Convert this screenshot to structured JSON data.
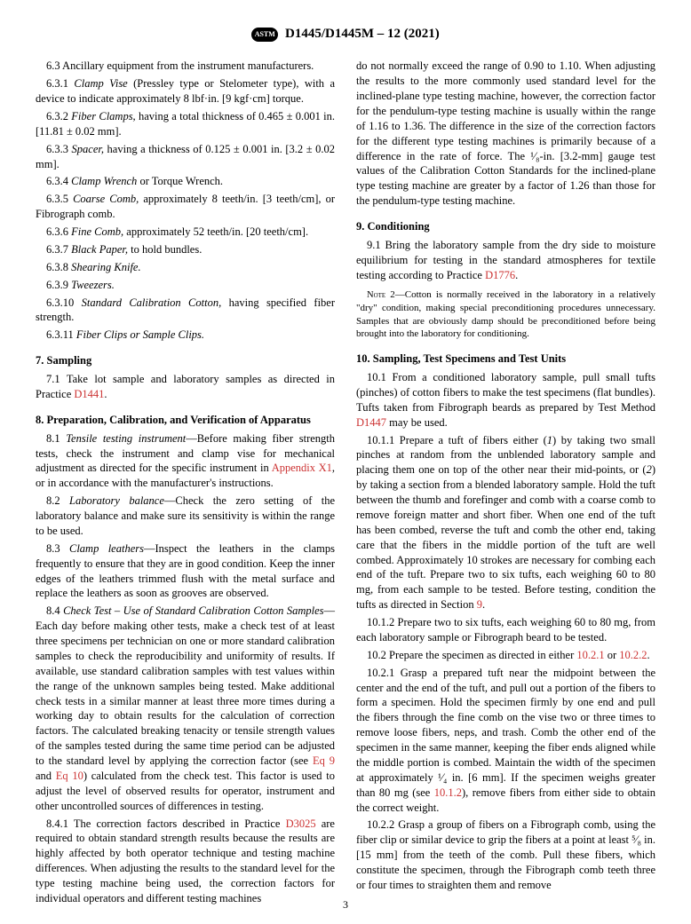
{
  "header": {
    "logo_label": "ASTM",
    "designation": "D1445/D1445M – 12 (2021)"
  },
  "page_number": "3",
  "col1": {
    "p6_3": "6.3 Ancillary equipment from the instrument manufacturers.",
    "p6_3_1_a": "6.3.1 ",
    "p6_3_1_i": "Clamp Vise ",
    "p6_3_1_b": "(Pressley type or Stelometer type), with a device to indicate approximately 8 lbf·in. [9 kgf·cm] torque.",
    "p6_3_2_a": "6.3.2 ",
    "p6_3_2_i": "Fiber Clamps, ",
    "p6_3_2_b": "having a total thickness of 0.465 ± 0.001 in. [11.81 ± 0.02 mm].",
    "p6_3_3_a": "6.3.3 ",
    "p6_3_3_i": "Spacer, ",
    "p6_3_3_b": "having a thickness of 0.125 ± 0.001 in. [3.2 ± 0.02 mm].",
    "p6_3_4_a": "6.3.4 ",
    "p6_3_4_i": "Clamp Wrench ",
    "p6_3_4_b": "or Torque Wrench.",
    "p6_3_5_a": "6.3.5 ",
    "p6_3_5_i": "Coarse Comb, ",
    "p6_3_5_b": "approximately 8 teeth/in. [3 teeth/cm], or Fibrograph comb.",
    "p6_3_6_a": "6.3.6 ",
    "p6_3_6_i": "Fine Comb, ",
    "p6_3_6_b": "approximately 52 teeth/in. [20 teeth/cm].",
    "p6_3_7_a": "6.3.7 ",
    "p6_3_7_i": "Black Paper, ",
    "p6_3_7_b": "to hold bundles.",
    "p6_3_8_a": "6.3.8 ",
    "p6_3_8_i": "Shearing Knife.",
    "p6_3_9_a": "6.3.9 ",
    "p6_3_9_i": "Tweezers.",
    "p6_3_10_a": "6.3.10 ",
    "p6_3_10_i": "Standard Calibration Cotton, ",
    "p6_3_10_b": "having specified fiber strength.",
    "p6_3_11_a": "6.3.11 ",
    "p6_3_11_i": "Fiber Clips or Sample Clips.",
    "s7_head": "7. Sampling",
    "p7_1_a": "7.1 Take lot sample and laboratory samples as directed in Practice ",
    "p7_1_ref": "D1441",
    "p7_1_b": ".",
    "s8_head": "8. Preparation, Calibration, and Verification of Apparatus",
    "p8_1_a": "8.1 ",
    "p8_1_i": "Tensile testing instrument",
    "p8_1_b": "—Before making fiber strength tests, check the instrument and clamp vise for mechanical adjustment as directed for the specific instrument in ",
    "p8_1_ref": "Appendix X1",
    "p8_1_c": ", or in accordance with the manufacturer's instructions.",
    "p8_2_a": "8.2 ",
    "p8_2_i": "Laboratory balance",
    "p8_2_b": "—Check the zero setting of the laboratory balance and make sure its sensitivity is within the range to be used.",
    "p8_3_a": "8.3 ",
    "p8_3_i": "Clamp leathers",
    "p8_3_b": "—Inspect the leathers in the clamps frequently to ensure that they are in good condition. Keep the inner edges of the leathers trimmed flush with the metal surface and replace the leathers as soon as grooves are observed.",
    "p8_4_a": "8.4 ",
    "p8_4_i": "Check Test – Use of Standard Calibration Cotton Samples",
    "p8_4_b": "—Each day before making other tests, make a check test of at least three specimens per technician on one or more standard calibration samples to check the reproducibility and uniformity of results. If available, use standard calibration samples with test values within the range of the unknown samples being tested. Make additional check tests in a similar manner at least three more times during a working day to obtain results for the calculation of correction factors. The calculated breaking tenacity or tensile strength values of the samples tested during the same time period can be adjusted to the standard level by applying the correction factor (see ",
    "p8_4_ref1": "Eq 9",
    "p8_4_c": " and ",
    "p8_4_ref2": "Eq 10",
    "p8_4_d": ") calculated from the check test. This factor is used to adjust the level of observed results for operator, instrument and other uncontrolled sources of differences in testing.",
    "p8_4_1_a": "8.4.1 The correction factors described in Practice ",
    "p8_4_1_ref": "D3025",
    "p8_4_1_b": " are required to obtain standard strength results because the results are highly affected by both operator technique and testing machine differences. When adjusting the results to the standard level for the type testing machine being used, the correction factors for individual operators and different testing machines"
  },
  "col2": {
    "p8_4_1_cont": "do not normally exceed the range of 0.90 to 1.10. When adjusting the results to the more commonly used standard level for the inclined-plane type testing machine, however, the correction factor for the pendulum-type testing machine is usually within the range of 1.16 to 1.36. The difference in the size of the correction factors for the different type testing machines is primarily because of a difference in the rate of force. The ¹⁄₈-in. [3.2-mm] gauge test values of the Calibration Cotton Standards for the inclined-plane type testing machine are greater by a factor of 1.26 than those for the pendulum-type testing machine.",
    "s9_head": "9. Conditioning",
    "p9_1_a": "9.1 Bring the laboratory sample from the dry side to moisture equilibrium for testing in the standard atmospheres for textile testing according to Practice ",
    "p9_1_ref": "D1776",
    "p9_1_b": ".",
    "note2_label": "Note",
    "note2_text": " 2—Cotton is normally received in the laboratory in a relatively \"dry\" condition, making special preconditioning procedures unnecessary. Samples that are obviously damp should be preconditioned before being brought into the laboratory for conditioning.",
    "s10_head": "10. Sampling, Test Specimens and Test Units",
    "p10_1_a": "10.1 From a conditioned laboratory sample, pull small tufts (pinches) of cotton fibers to make the test specimens (flat bundles). Tufts taken from Fibrograph beards as prepared by Test Method ",
    "p10_1_ref": "D1447",
    "p10_1_b": " may be used.",
    "p10_1_1_a": "10.1.1 Prepare a tuft of fibers either (",
    "p10_1_1_i1": "1",
    "p10_1_1_b": ") by taking two small pinches at random from the unblended laboratory sample and placing them one on top of the other near their mid-points, or (",
    "p10_1_1_i2": "2",
    "p10_1_1_c": ") by taking a section from a blended laboratory sample. Hold the tuft between the thumb and forefinger and comb with a coarse comb to remove foreign matter and short fiber. When one end of the tuft has been combed, reverse the tuft and comb the other end, taking care that the fibers in the middle portion of the tuft are well combed. Approximately 10 strokes are necessary for combing each end of the tuft. Prepare two to six tufts, each weighing 60 to 80 mg, from each sample to be tested. Before testing, condition the tufts as directed in Section ",
    "p10_1_1_ref": "9",
    "p10_1_1_d": ".",
    "p10_1_2": "10.1.2 Prepare two to six tufts, each weighing 60 to 80 mg, from each laboratory sample or Fibrograph beard to be tested.",
    "p10_2_a": "10.2 Prepare the specimen as directed in either ",
    "p10_2_ref1": "10.2.1",
    "p10_2_b": " or ",
    "p10_2_ref2": "10.2.2",
    "p10_2_c": ".",
    "p10_2_1_a": "10.2.1 Grasp a prepared tuft near the midpoint between the center and the end of the tuft, and pull out a portion of the fibers to form a specimen. Hold the specimen firmly by one end and pull the fibers through the fine comb on the vise two or three times to remove loose fibers, neps, and trash. Comb the other end of the specimen in the same manner, keeping the fiber ends aligned while the middle portion is combed. Maintain the width of the specimen at approximately ¹⁄₄ in. [6 mm]. If the specimen weighs greater than 80 mg (see ",
    "p10_2_1_ref": "10.1.2",
    "p10_2_1_b": "), remove fibers from either side to obtain the correct weight.",
    "p10_2_2": "10.2.2 Grasp a group of fibers on a Fibrograph comb, using the fiber clip or similar device to grip the fibers at a point at least ⁵⁄₈ in. [15 mm] from the teeth of the comb. Pull these fibers, which constitute the specimen, through the Fibrograph comb teeth three or four times to straighten them and remove"
  }
}
